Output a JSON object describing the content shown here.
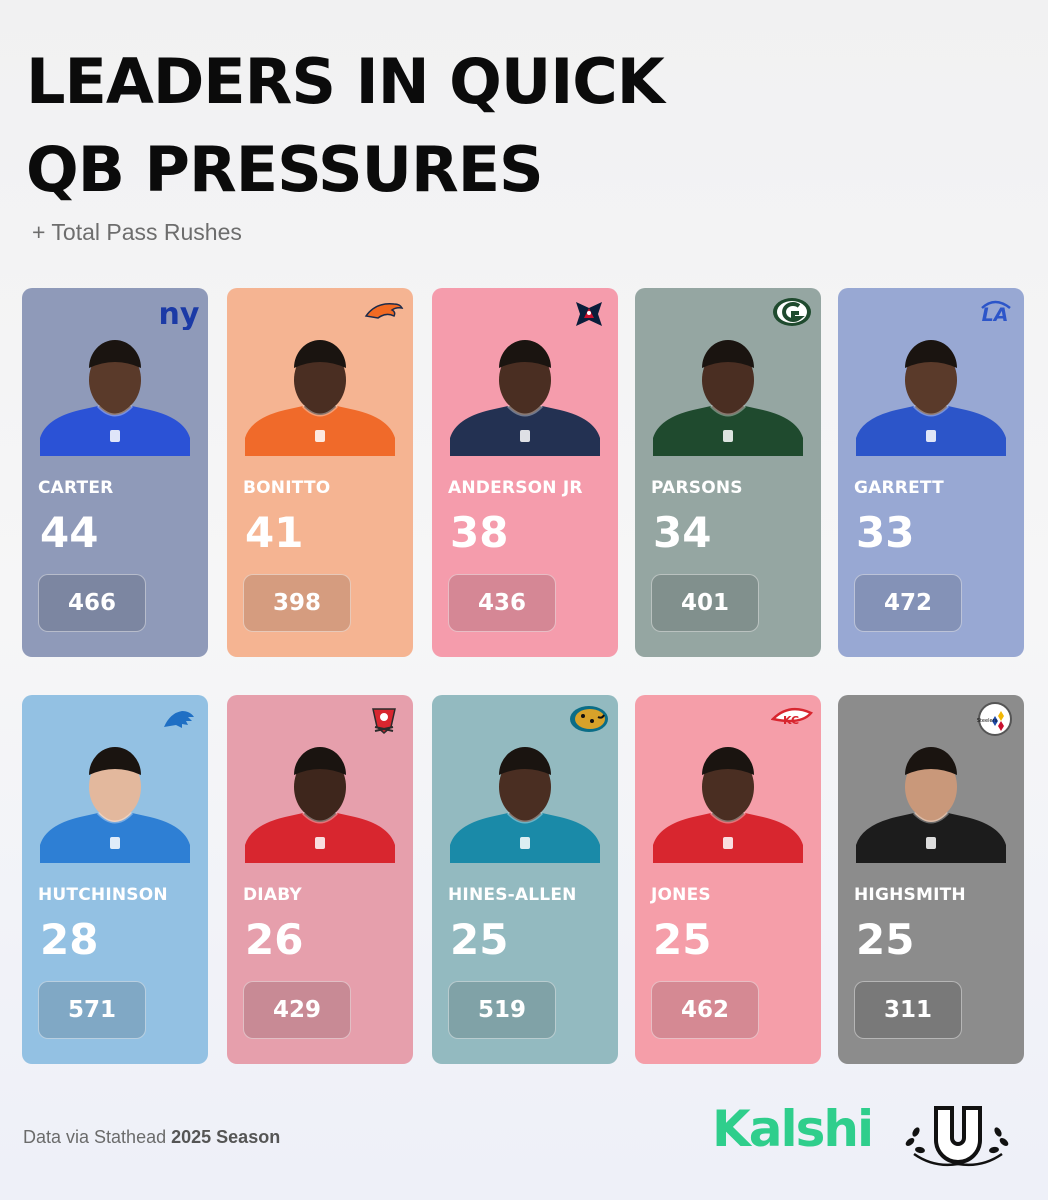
{
  "header": {
    "title_line1": "LEADERS IN QUICK",
    "title_line2": "QB PRESSURES",
    "subtitle": "+ Total Pass Rushes"
  },
  "players": [
    {
      "name": "CARTER",
      "quick_pressures": "44",
      "pass_rushes": "466",
      "team_icon": "giants-logo-icon",
      "card_color": "#8f9ab9",
      "jersey_color": "#2b52d6",
      "skin": "#5a3a2a"
    },
    {
      "name": "BONITTO",
      "quick_pressures": "41",
      "pass_rushes": "398",
      "team_icon": "broncos-logo-icon",
      "card_color": "#f5b492",
      "jersey_color": "#f06a2a",
      "skin": "#4a2e22"
    },
    {
      "name": "ANDERSON JR",
      "quick_pressures": "38",
      "pass_rushes": "436",
      "team_icon": "texans-logo-icon",
      "card_color": "#f59cac",
      "jersey_color": "#233152",
      "skin": "#4a2e22"
    },
    {
      "name": "PARSONS",
      "quick_pressures": "34",
      "pass_rushes": "401",
      "team_icon": "packers-logo-icon",
      "card_color": "#95a6a2",
      "jersey_color": "#1f4a2e",
      "skin": "#4a2e22"
    },
    {
      "name": "GARRETT",
      "quick_pressures": "33",
      "pass_rushes": "472",
      "team_icon": "rams-logo-icon",
      "card_color": "#98a8d3",
      "jersey_color": "#2c55c9",
      "skin": "#5a3a2a"
    },
    {
      "name": "HUTCHINSON",
      "quick_pressures": "28",
      "pass_rushes": "571",
      "team_icon": "lions-logo-icon",
      "card_color": "#93c1e3",
      "jersey_color": "#2e7fd4",
      "skin": "#e3b89d"
    },
    {
      "name": "DIABY",
      "quick_pressures": "26",
      "pass_rushes": "429",
      "team_icon": "buccaneers-logo-icon",
      "card_color": "#e69fac",
      "jersey_color": "#d8262f",
      "skin": "#3e261c"
    },
    {
      "name": "HINES-ALLEN",
      "quick_pressures": "25",
      "pass_rushes": "519",
      "team_icon": "jaguars-logo-icon",
      "card_color": "#93bac0",
      "jersey_color": "#1a8aa8",
      "skin": "#4a2e22"
    },
    {
      "name": "JONES",
      "quick_pressures": "25",
      "pass_rushes": "462",
      "team_icon": "chiefs-logo-icon",
      "card_color": "#f59ea9",
      "jersey_color": "#d8262f",
      "skin": "#4a2e22"
    },
    {
      "name": "HIGHSMITH",
      "quick_pressures": "25",
      "pass_rushes": "311",
      "team_icon": "steelers-logo-icon",
      "card_color": "#8c8c8c",
      "jersey_color": "#1c1c1c",
      "skin": "#c9987a"
    }
  ],
  "footer": {
    "source_prefix": "Data via Stathead",
    "season": "2025 Season",
    "brand": "Kalshi",
    "partner_logo": "u-crest-icon",
    "brand_color": "#2fce8c"
  }
}
